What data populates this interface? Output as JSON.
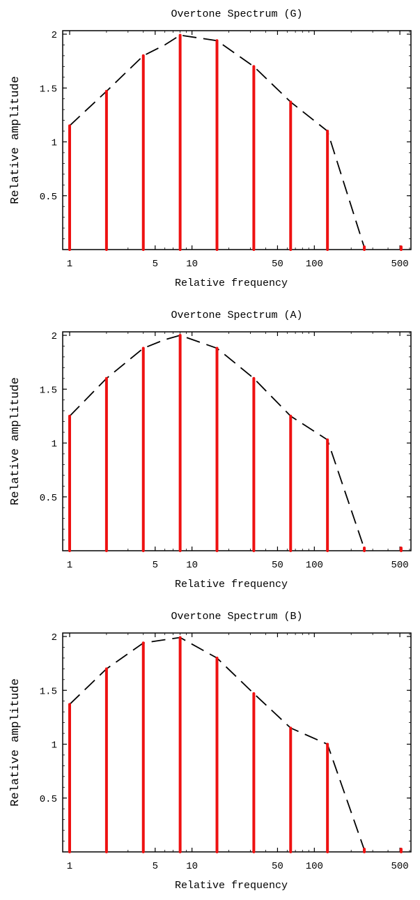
{
  "chart_data": [
    {
      "type": "bar",
      "title": "Overtone   Spectrum   (G)",
      "xlabel": "Relative   frequency",
      "ylabel": "Relative amplitude",
      "x_scale": "log",
      "xlim": [
        1,
        600
      ],
      "ylim": [
        0,
        2
      ],
      "x_ticks": [
        1,
        5,
        10,
        50,
        100,
        500
      ],
      "x_tick_labels": [
        "1",
        "5",
        "10",
        "50",
        "100",
        "500"
      ],
      "y_ticks": [
        0.5,
        1,
        1.5,
        2
      ],
      "y_tick_labels": [
        "0.5",
        "1",
        "1.5",
        "2"
      ],
      "bar_color": "#ee1111",
      "envelope_color": "#000000",
      "x": [
        1,
        2,
        4,
        8,
        16,
        32,
        64,
        128,
        256,
        512
      ],
      "values": [
        1.15,
        1.47,
        1.8,
        1.99,
        1.94,
        1.7,
        1.37,
        1.1,
        0.0,
        0.0
      ],
      "envelope": [
        [
          1,
          1.15
        ],
        [
          2,
          1.47
        ],
        [
          4,
          1.8
        ],
        [
          6,
          1.9
        ],
        [
          8,
          1.99
        ],
        [
          16,
          1.94
        ],
        [
          32,
          1.7
        ],
        [
          64,
          1.37
        ],
        [
          128,
          1.1
        ],
        [
          256,
          0.02
        ]
      ]
    },
    {
      "type": "bar",
      "title": "Overtone   Spectrum   (A)",
      "xlabel": "Relative   frequency",
      "ylabel": "Relative amplitude",
      "x_scale": "log",
      "xlim": [
        1,
        600
      ],
      "ylim": [
        0,
        2
      ],
      "x_ticks": [
        1,
        5,
        10,
        50,
        100,
        500
      ],
      "x_tick_labels": [
        "1",
        "5",
        "10",
        "50",
        "100",
        "500"
      ],
      "y_ticks": [
        0.5,
        1,
        1.5,
        2
      ],
      "y_tick_labels": [
        "0.5",
        "1",
        "1.5",
        "2"
      ],
      "bar_color": "#ee1111",
      "envelope_color": "#000000",
      "x": [
        1,
        2,
        4,
        8,
        16,
        32,
        64,
        128,
        256,
        512
      ],
      "values": [
        1.25,
        1.6,
        1.88,
        2.0,
        1.88,
        1.6,
        1.25,
        1.03,
        0.0,
        0.0
      ],
      "envelope": [
        [
          1,
          1.25
        ],
        [
          2,
          1.6
        ],
        [
          4,
          1.88
        ],
        [
          6,
          1.96
        ],
        [
          8,
          2.0
        ],
        [
          16,
          1.88
        ],
        [
          32,
          1.6
        ],
        [
          64,
          1.25
        ],
        [
          128,
          1.03
        ],
        [
          256,
          0.02
        ]
      ]
    },
    {
      "type": "bar",
      "title": "Overtone   Spectrum   (B)",
      "xlabel": "Relative   frequency",
      "ylabel": "Relative amplitude",
      "x_scale": "log",
      "xlim": [
        1,
        600
      ],
      "ylim": [
        0,
        2
      ],
      "x_ticks": [
        1,
        5,
        10,
        50,
        100,
        500
      ],
      "x_tick_labels": [
        "1",
        "5",
        "10",
        "50",
        "100",
        "500"
      ],
      "y_ticks": [
        0.5,
        1,
        1.5,
        2
      ],
      "y_tick_labels": [
        "0.5",
        "1",
        "1.5",
        "2"
      ],
      "bar_color": "#ee1111",
      "envelope_color": "#000000",
      "x": [
        1,
        2,
        4,
        8,
        16,
        32,
        64,
        128,
        256,
        512
      ],
      "values": [
        1.37,
        1.7,
        1.94,
        1.99,
        1.8,
        1.47,
        1.15,
        1.0,
        0.0,
        0.0
      ],
      "envelope": [
        [
          1,
          1.37
        ],
        [
          2,
          1.7
        ],
        [
          4,
          1.94
        ],
        [
          6,
          1.97
        ],
        [
          8,
          1.99
        ],
        [
          16,
          1.8
        ],
        [
          32,
          1.47
        ],
        [
          64,
          1.15
        ],
        [
          128,
          1.0
        ],
        [
          256,
          0.02
        ]
      ]
    }
  ]
}
